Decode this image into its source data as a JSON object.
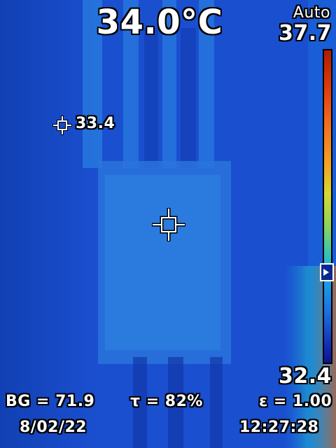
{
  "center_spot": {
    "temperature": "34.0°C"
  },
  "marker_spot": {
    "value": "33.4"
  },
  "color_scale": {
    "mode": "Auto",
    "max": "37.7",
    "min": "32.4",
    "level_fraction": 0.32
  },
  "parameters": {
    "background_temp": "BG = 71.9",
    "transmission": "τ = 82%",
    "emissivity": "ε = 1.00"
  },
  "status": {
    "date": "8/02/22",
    "time": "12:27:28"
  },
  "palette": {
    "background": "#1548c8",
    "warm_edge": "#e05a10",
    "text": "#ffffff"
  }
}
